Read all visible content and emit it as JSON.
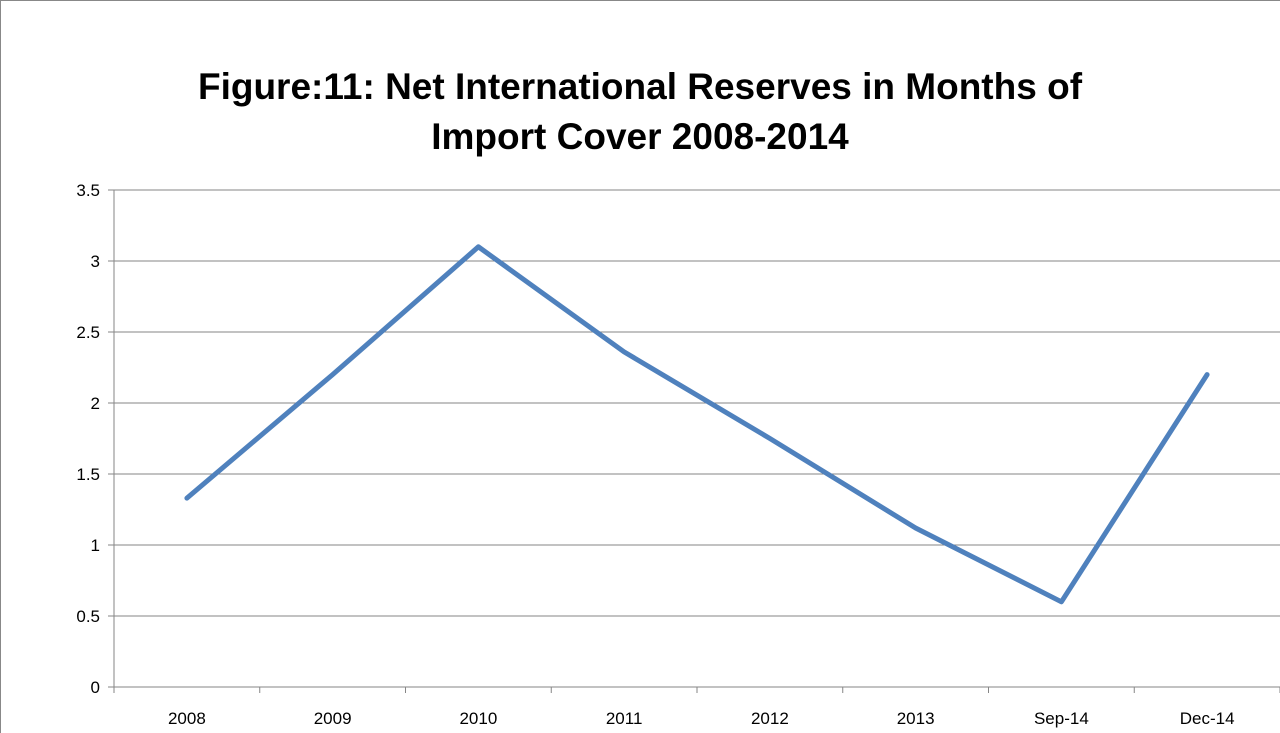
{
  "chart_data": {
    "type": "line",
    "title": "Figure:11: Net International Reserves in Months of Import Cover 2008-2014",
    "title_lines": [
      "Figure:11: Net International Reserves in Months of",
      "Import Cover 2008-2014"
    ],
    "categories": [
      "2008",
      "2009",
      "2010",
      "2011",
      "2012",
      "2013",
      "Sep-14",
      "Dec-14"
    ],
    "series": [
      {
        "values": [
          1.33,
          2.2,
          3.1,
          2.36,
          1.75,
          1.12,
          0.6,
          2.2
        ],
        "color": "#4f81bd"
      }
    ],
    "xlabel": "",
    "ylabel": "",
    "ylim": [
      0,
      3.5
    ],
    "yticks": [
      "0",
      "0.5",
      "1",
      "1.5",
      "2",
      "2.5",
      "3",
      "3.5"
    ],
    "grid": true,
    "legend": "none"
  }
}
